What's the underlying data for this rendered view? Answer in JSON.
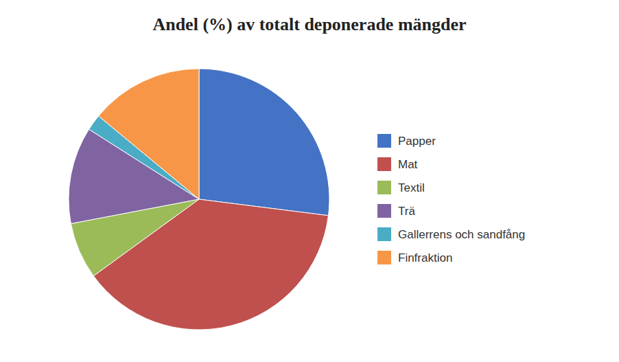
{
  "chart_data": {
    "type": "pie",
    "title": "Andel (%) av totalt deponerade mängder",
    "categories": [
      "Papper",
      "Mat",
      "Textil",
      "Trä",
      "Gallerrens och sandfång",
      "Finfraktion"
    ],
    "values": [
      27,
      38,
      7,
      12,
      2,
      14
    ],
    "colors": [
      "#4472C4",
      "#C0504D",
      "#9BBB59",
      "#8064A2",
      "#4BACC6",
      "#F79646"
    ],
    "legend": "right"
  }
}
